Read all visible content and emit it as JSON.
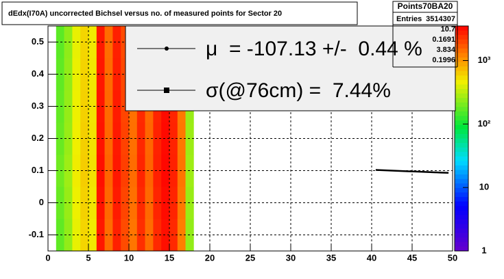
{
  "chart_data": {
    "type": "heatmap",
    "title": "dEdx(I70A) uncorrected Bichsel versus no. of measured points for Sector 20",
    "xbins": [
      1,
      2,
      3,
      4,
      5,
      6,
      7,
      8,
      9,
      10,
      11,
      12,
      13,
      14,
      15,
      16,
      17,
      18
    ],
    "ybins": [
      -0.15,
      -0.05,
      0.05,
      0.15,
      0.25,
      0.35,
      0.45,
      0.55
    ],
    "z": [
      [
        170,
        180,
        190,
        180,
        175,
        170,
        165
      ],
      [
        240,
        250,
        260,
        250,
        245,
        240,
        235
      ],
      [
        430,
        450,
        470,
        460,
        450,
        440,
        430
      ],
      [
        580,
        600,
        620,
        610,
        600,
        590,
        580
      ],
      [
        480,
        500,
        520,
        510,
        500,
        490,
        480
      ],
      [
        2900,
        3000,
        3100,
        3000,
        2950,
        2900,
        2850
      ],
      [
        1450,
        1500,
        1550,
        1500,
        1480,
        1460,
        1440
      ],
      [
        2700,
        2800,
        2900,
        2850,
        2800,
        2750,
        2700
      ],
      [
        1900,
        2000,
        2100,
        2050,
        2000,
        1950,
        1900
      ],
      [
        1350,
        1400,
        1450,
        1420,
        1400,
        1380,
        1350
      ],
      [
        2400,
        2500,
        2600,
        2550,
        2500,
        2450,
        2400
      ],
      [
        1450,
        1500,
        1550,
        1520,
        1500,
        1480,
        1450
      ],
      [
        2500,
        2600,
        2700,
        2650,
        2600,
        2550,
        2500
      ],
      [
        3100,
        3200,
        3300,
        3250,
        3200,
        3150,
        3100
      ],
      [
        2500,
        2600,
        2700,
        2650,
        2600,
        2550,
        2500
      ],
      [
        1250,
        1300,
        1350,
        1320,
        1300,
        1280,
        1250
      ],
      [
        240,
        250,
        260,
        255,
        250,
        245,
        240
      ]
    ],
    "logz": true,
    "zlim": [
      1,
      3500
    ],
    "zticks": [
      1,
      10,
      {
        "value": 100,
        "label": "10²"
      },
      {
        "value": 1000,
        "label": "10³"
      }
    ],
    "xlim": [
      0,
      50
    ],
    "ylim": [
      -0.15,
      0.55
    ],
    "xticks": [
      0,
      5,
      10,
      15,
      20,
      25,
      30,
      35,
      40,
      45,
      50
    ],
    "yticks": [
      -0.1,
      0,
      0.1,
      0.2,
      0.3,
      0.4,
      0.5
    ],
    "grid": true,
    "profile": {
      "color": "#000000",
      "x": [
        40.5,
        41.5,
        42.5,
        43.5,
        44.5,
        45.5,
        46.5,
        47.5,
        48.5,
        49.5
      ],
      "values": [
        0.102,
        0.101,
        0.1,
        0.099,
        0.098,
        0.097,
        0.096,
        0.095,
        0.094,
        0.093
      ]
    },
    "legend": [
      "μ  = -107.13 +/-  0.44 %",
      "σ(@76cm) =  7.44%"
    ],
    "stats": {
      "title": "Points70BA20",
      "entries_label": "Entries",
      "entries": "3514307",
      "values": [
        "10.7",
        "0.1691",
        "3.834",
        "0.1996"
      ]
    }
  }
}
